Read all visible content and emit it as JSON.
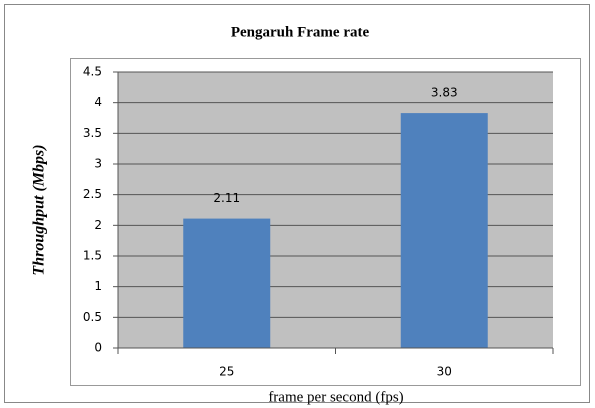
{
  "chart_data": {
    "type": "bar",
    "title": "Pengaruh Frame rate",
    "xlabel": "frame per second (fps)",
    "ylabel": "Throughput (Mbps)",
    "categories": [
      "25",
      "30"
    ],
    "values": [
      2.11,
      3.83
    ],
    "color": "#4f81bd",
    "ylim": [
      0,
      4.5
    ],
    "yticks": [
      0,
      0.5,
      1,
      1.5,
      2,
      2.5,
      3,
      3.5,
      4,
      4.5
    ],
    "grid": true
  }
}
